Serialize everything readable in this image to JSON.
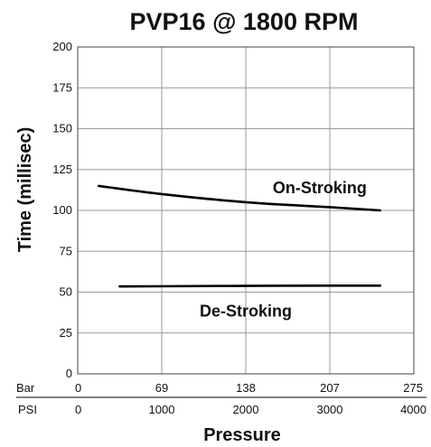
{
  "chart_data": {
    "type": "line",
    "title": "PVP16 @ 1800 RPM",
    "xlabel": "Pressure",
    "ylabel": "Time (millisec)",
    "ylim": [
      0,
      200
    ],
    "yticks": [
      0,
      25,
      50,
      75,
      100,
      125,
      150,
      175,
      200
    ],
    "xlim": [
      0,
      4000
    ],
    "x_unit": "PSI",
    "x_ticks_psi": [
      "0",
      "1000",
      "2000",
      "3000",
      "4000"
    ],
    "x_secondary_unit": "Bar",
    "x_ticks_bar": [
      "0",
      "69",
      "138",
      "207",
      "275"
    ],
    "grid": true,
    "series": [
      {
        "name": "On-Stroking",
        "x": [
          250,
          1000,
          2000,
          3000,
          3600
        ],
        "y": [
          115,
          110,
          105,
          102,
          100
        ]
      },
      {
        "name": "De-Stroking",
        "x": [
          500,
          1000,
          2000,
          3000,
          3600
        ],
        "y": [
          53.5,
          53.6,
          53.8,
          54,
          54
        ]
      }
    ]
  }
}
